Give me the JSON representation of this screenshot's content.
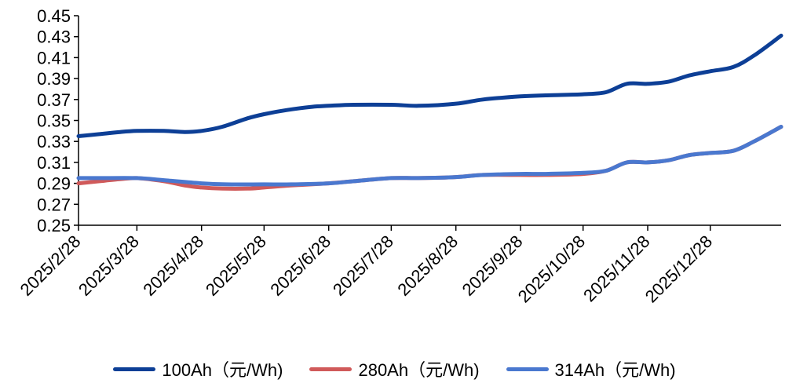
{
  "chart_data": {
    "type": "line",
    "title": "",
    "xlabel": "",
    "ylabel": "",
    "ylim": [
      0.25,
      0.45
    ],
    "y_ticks": [
      "0.25",
      "0.27",
      "0.29",
      "0.31",
      "0.33",
      "0.35",
      "0.37",
      "0.39",
      "0.41",
      "0.43",
      "0.45"
    ],
    "x_ticks": [
      "2025/2/28",
      "2025/3/28",
      "2025/4/28",
      "2025/5/28",
      "2025/6/28",
      "2025/7/28",
      "2025/8/28",
      "2025/9/28",
      "2025/10/28",
      "2025/11/28",
      "2025/12/28"
    ],
    "x_range": [
      "2025/2/28",
      "2026/1/31"
    ],
    "legend_position": "bottom",
    "grid": false,
    "series": [
      {
        "name": "100Ah（元/Wh)",
        "color": "#0d3f96",
        "points": [
          [
            "2025/2/28",
            0.335
          ],
          [
            "2025/3/10",
            0.337
          ],
          [
            "2025/3/20",
            0.339
          ],
          [
            "2025/3/28",
            0.34
          ],
          [
            "2025/4/10",
            0.34
          ],
          [
            "2025/4/20",
            0.339
          ],
          [
            "2025/4/28",
            0.34
          ],
          [
            "2025/5/8",
            0.344
          ],
          [
            "2025/5/20",
            0.352
          ],
          [
            "2025/5/28",
            0.356
          ],
          [
            "2025/6/8",
            0.36
          ],
          [
            "2025/6/20",
            0.363
          ],
          [
            "2025/6/28",
            0.364
          ],
          [
            "2025/7/10",
            0.365
          ],
          [
            "2025/7/28",
            0.365
          ],
          [
            "2025/8/10",
            0.364
          ],
          [
            "2025/8/28",
            0.366
          ],
          [
            "2025/9/10",
            0.37
          ],
          [
            "2025/9/28",
            0.373
          ],
          [
            "2025/10/10",
            0.374
          ],
          [
            "2025/10/28",
            0.375
          ],
          [
            "2025/11/8",
            0.377
          ],
          [
            "2025/11/18",
            0.385
          ],
          [
            "2025/11/28",
            0.385
          ],
          [
            "2025/12/8",
            0.387
          ],
          [
            "2025/12/18",
            0.393
          ],
          [
            "2025/12/28",
            0.397
          ],
          [
            "2026/1/8",
            0.401
          ],
          [
            "2026/1/18",
            0.412
          ],
          [
            "2026/1/31",
            0.431
          ]
        ]
      },
      {
        "name": "280Ah（元/Wh)",
        "color": "#d05a5a",
        "points": [
          [
            "2025/2/28",
            0.29
          ],
          [
            "2025/3/10",
            0.292
          ],
          [
            "2025/3/20",
            0.294
          ],
          [
            "2025/3/28",
            0.295
          ],
          [
            "2025/4/10",
            0.292
          ],
          [
            "2025/4/20",
            0.288
          ],
          [
            "2025/4/28",
            0.286
          ],
          [
            "2025/5/8",
            0.285
          ],
          [
            "2025/5/20",
            0.285
          ],
          [
            "2025/5/28",
            0.286
          ],
          [
            "2025/6/10",
            0.288
          ],
          [
            "2025/6/28",
            0.29
          ],
          [
            "2025/7/10",
            0.292
          ],
          [
            "2025/7/28",
            0.295
          ],
          [
            "2025/8/10",
            0.295
          ],
          [
            "2025/8/28",
            0.296
          ],
          [
            "2025/9/10",
            0.298
          ],
          [
            "2025/9/28",
            0.298
          ],
          [
            "2025/10/10",
            0.298
          ],
          [
            "2025/10/28",
            0.299
          ],
          [
            "2025/11/8",
            0.302
          ],
          [
            "2025/11/18",
            0.31
          ],
          [
            "2025/11/28",
            0.31
          ],
          [
            "2025/12/8",
            0.312
          ],
          [
            "2025/12/18",
            0.317
          ],
          [
            "2025/12/28",
            0.319
          ],
          [
            "2026/1/8",
            0.321
          ],
          [
            "2026/1/18",
            0.33
          ],
          [
            "2026/1/31",
            0.344
          ]
        ]
      },
      {
        "name": "314Ah（元/Wh)",
        "color": "#4a78cf",
        "points": [
          [
            "2025/2/28",
            0.295
          ],
          [
            "2025/3/10",
            0.295
          ],
          [
            "2025/3/28",
            0.295
          ],
          [
            "2025/4/10",
            0.293
          ],
          [
            "2025/4/28",
            0.29
          ],
          [
            "2025/5/10",
            0.289
          ],
          [
            "2025/5/28",
            0.289
          ],
          [
            "2025/6/10",
            0.289
          ],
          [
            "2025/6/28",
            0.29
          ],
          [
            "2025/7/10",
            0.292
          ],
          [
            "2025/7/28",
            0.295
          ],
          [
            "2025/8/10",
            0.295
          ],
          [
            "2025/8/28",
            0.296
          ],
          [
            "2025/9/10",
            0.298
          ],
          [
            "2025/9/28",
            0.299
          ],
          [
            "2025/10/10",
            0.299
          ],
          [
            "2025/10/28",
            0.3
          ],
          [
            "2025/11/8",
            0.302
          ],
          [
            "2025/11/18",
            0.31
          ],
          [
            "2025/11/28",
            0.31
          ],
          [
            "2025/12/8",
            0.312
          ],
          [
            "2025/12/18",
            0.317
          ],
          [
            "2025/12/28",
            0.319
          ],
          [
            "2026/1/8",
            0.321
          ],
          [
            "2026/1/18",
            0.33
          ],
          [
            "2026/1/31",
            0.344
          ]
        ]
      }
    ]
  }
}
